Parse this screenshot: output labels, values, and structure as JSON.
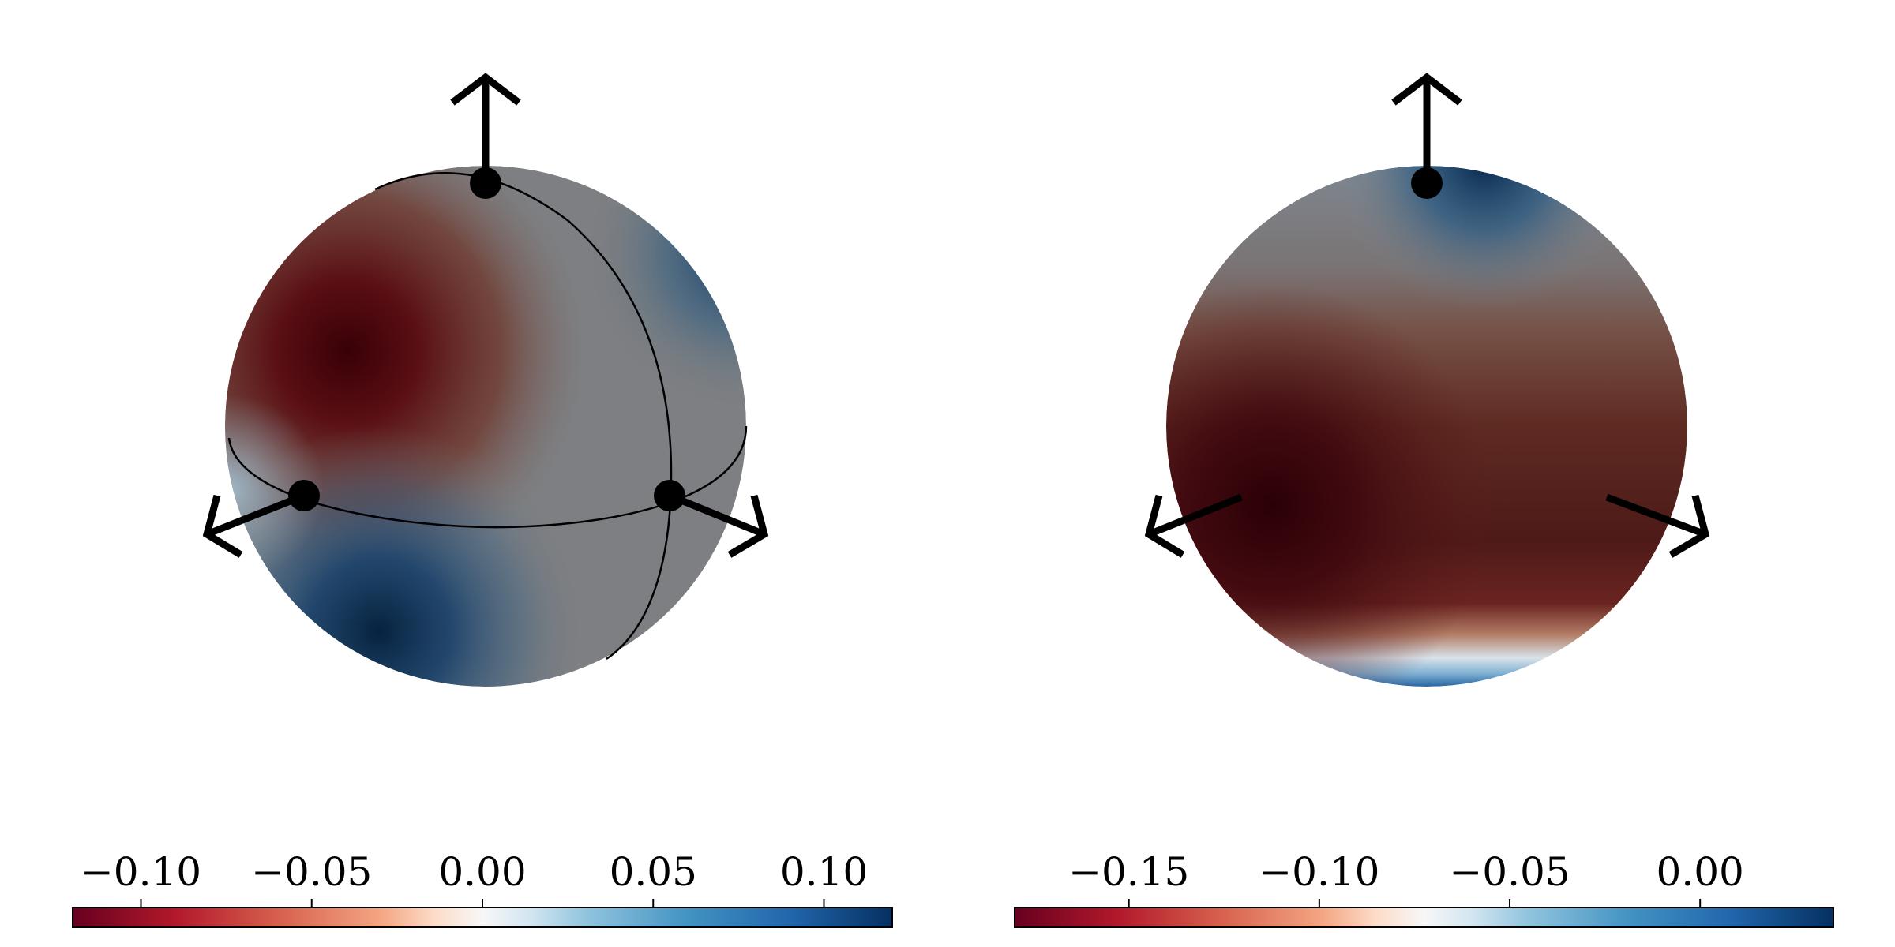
{
  "chart_data": [
    {
      "type": "heatmap",
      "plot": "sphere surface field",
      "colormap": "RdBu (red = negative, blue = positive)",
      "colorbar": {
        "range": [
          -0.12,
          0.12
        ],
        "ticks": [
          -0.1,
          -0.05,
          0.0,
          0.05,
          0.1
        ],
        "tick_labels": [
          "−0.10",
          "−0.05",
          "0.00",
          "0.05",
          "0.10"
        ]
      },
      "axes_arrows": [
        "up",
        "lower-left",
        "lower-right"
      ],
      "markers": [
        "top pole",
        "left equator point",
        "right equator point"
      ],
      "wireframe": true
    },
    {
      "type": "heatmap",
      "plot": "sphere surface field",
      "colormap": "RdBu (red = negative, blue = positive)",
      "colorbar": {
        "range": [
          -0.18,
          0.035
        ],
        "ticks": [
          -0.15,
          -0.1,
          -0.05,
          0.0
        ],
        "tick_labels": [
          "−0.15",
          "−0.10",
          "−0.05",
          "0.00"
        ]
      },
      "axes_arrows": [
        "up",
        "lower-left",
        "lower-right"
      ],
      "markers": [
        "top pole"
      ],
      "wireframe": false
    }
  ],
  "colors": {
    "deep_red": "#67001f",
    "red": "#b2182b",
    "salmon": "#ef8a62",
    "peach": "#fddbc7",
    "white": "#f7f7f7",
    "light_blue": "#d1e5f0",
    "sky": "#67a9cf",
    "blue": "#2166ac",
    "navy": "#053061",
    "mid_gray": "#7d7f82"
  }
}
